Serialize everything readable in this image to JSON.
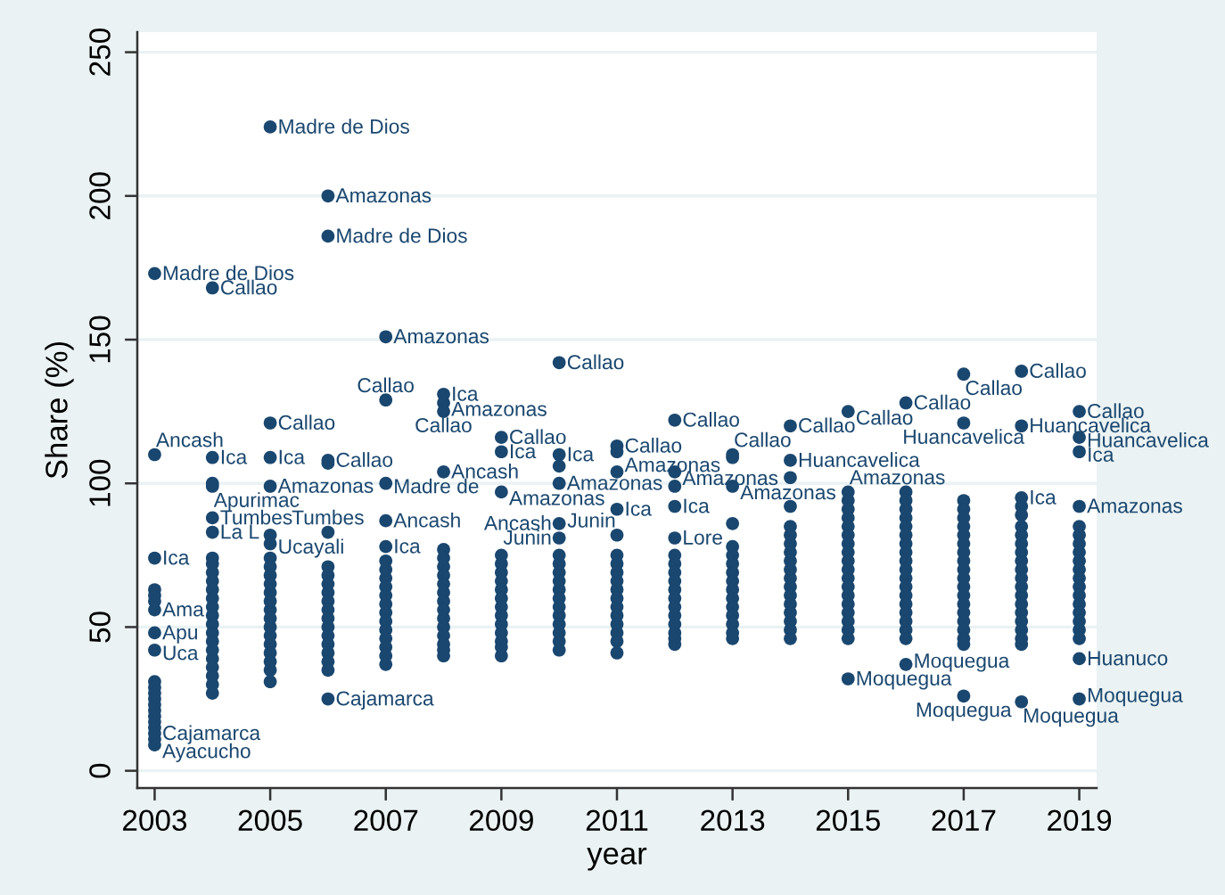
{
  "chart_data": {
    "type": "scatter",
    "xlabel": "year",
    "ylabel": "Share (%)",
    "xlim": [
      2002.7,
      2019.3
    ],
    "ylim": [
      -6,
      257
    ],
    "xticks": [
      2003,
      2005,
      2007,
      2009,
      2011,
      2013,
      2015,
      2017,
      2019
    ],
    "yticks": [
      0,
      50,
      100,
      150,
      200,
      250
    ],
    "grid": "y",
    "marker": "circle",
    "series": [
      {
        "color": "#1a476f",
        "x": [
          2003,
          2003,
          2003,
          2003,
          2003,
          2003,
          2003,
          2003,
          2003,
          2003,
          2003,
          2003,
          2003,
          2003,
          2003,
          2003,
          2003,
          2003,
          2003,
          2003,
          2003
        ],
        "values": [
          173,
          110,
          74,
          63,
          61,
          59,
          56,
          48,
          42,
          31,
          29,
          27,
          25,
          23,
          21,
          19,
          17,
          15,
          13,
          11,
          9
        ],
        "value_labels": [
          "Madre de Dios",
          "Ancash",
          "Ica",
          null,
          null,
          null,
          "Ama",
          "Apu",
          "Uca",
          null,
          null,
          null,
          null,
          null,
          null,
          null,
          null,
          null,
          "Cajamarca",
          null,
          "Ayacucho"
        ]
      },
      {
        "color": "#1a476f",
        "x": [
          2004,
          2004,
          2004,
          2004,
          2004,
          2004,
          2004,
          2004,
          2004,
          2004,
          2004,
          2004,
          2004,
          2004,
          2004,
          2004,
          2004,
          2004,
          2004,
          2004,
          2004,
          2004,
          2004
        ],
        "values": [
          168,
          109,
          100,
          99,
          88,
          83,
          74,
          72,
          69,
          66,
          63,
          60,
          57,
          54,
          51,
          48,
          45,
          42,
          39,
          36,
          33,
          30,
          27
        ],
        "value_labels": [
          "Callao",
          "Ica",
          null,
          "Apurimac",
          "Tumbes",
          "La L",
          null,
          null,
          null,
          null,
          null,
          null,
          null,
          null,
          null,
          null,
          null,
          null,
          null,
          null,
          null,
          null,
          null
        ]
      },
      {
        "color": "#1a476f",
        "x": [
          2005,
          2005,
          2005,
          2005,
          2005,
          2005,
          2005,
          2005,
          2005,
          2005,
          2005,
          2005,
          2005,
          2005,
          2005,
          2005,
          2005,
          2005,
          2005,
          2005,
          2005
        ],
        "values": [
          224,
          121,
          109,
          99,
          82,
          79,
          74,
          71,
          68,
          65,
          62,
          59,
          56,
          53,
          50,
          47,
          44,
          41,
          38,
          35,
          31
        ],
        "value_labels": [
          "Madre de Dios",
          "Callao",
          "Ica",
          "Amazonas",
          null,
          "Ucayali",
          null,
          null,
          null,
          null,
          null,
          null,
          null,
          null,
          null,
          null,
          null,
          null,
          null,
          null,
          null
        ]
      },
      {
        "color": "#1a476f",
        "x": [
          2006,
          2006,
          2006,
          2006,
          2006,
          2006,
          2006,
          2006,
          2006,
          2006,
          2006,
          2006,
          2006,
          2006,
          2006,
          2006,
          2006,
          2006,
          2006
        ],
        "values": [
          200,
          186,
          108,
          107,
          83,
          71,
          68,
          65,
          62,
          59,
          56,
          53,
          50,
          47,
          44,
          41,
          38,
          35,
          25
        ],
        "value_labels": [
          "Amazonas",
          "Madre de Dios",
          "Callao",
          null,
          "Tumbes",
          null,
          null,
          null,
          null,
          null,
          null,
          null,
          null,
          null,
          null,
          null,
          null,
          null,
          "Cajamarca"
        ]
      },
      {
        "color": "#1a476f",
        "x": [
          2007,
          2007,
          2007,
          2007,
          2007,
          2007,
          2007,
          2007,
          2007,
          2007,
          2007,
          2007,
          2007,
          2007,
          2007,
          2007,
          2007,
          2007
        ],
        "values": [
          151,
          129,
          100,
          87,
          78,
          73,
          70,
          67,
          64,
          61,
          58,
          55,
          52,
          49,
          46,
          43,
          40,
          37
        ],
        "value_labels": [
          "Amazonas",
          "Callao",
          "Madre de",
          "Ancash",
          "Ica",
          null,
          null,
          null,
          null,
          null,
          null,
          null,
          null,
          null,
          null,
          null,
          null,
          null
        ]
      },
      {
        "color": "#1a476f",
        "x": [
          2008,
          2008,
          2008,
          2008,
          2008,
          2008,
          2008,
          2008,
          2008,
          2008,
          2008,
          2008,
          2008,
          2008,
          2008,
          2008,
          2008,
          2008
        ],
        "values": [
          131,
          128,
          125,
          104,
          77,
          74,
          71,
          68,
          65,
          62,
          59,
          56,
          53,
          50,
          47,
          44,
          42,
          40
        ],
        "value_labels": [
          "Ica",
          "Amazonas",
          "Callao",
          "Ancash",
          null,
          null,
          null,
          null,
          null,
          null,
          null,
          null,
          null,
          null,
          null,
          null,
          null,
          null
        ]
      },
      {
        "color": "#1a476f",
        "x": [
          2009,
          2009,
          2009,
          2009,
          2009,
          2009,
          2009,
          2009,
          2009,
          2009,
          2009,
          2009,
          2009,
          2009,
          2009,
          2009
        ],
        "values": [
          116,
          111,
          97,
          75,
          72,
          69,
          66,
          63,
          60,
          57,
          54,
          51,
          48,
          45,
          43,
          40
        ],
        "value_labels": [
          "Callao",
          "Ica",
          "Amazonas",
          null,
          null,
          null,
          null,
          null,
          null,
          null,
          null,
          null,
          null,
          null,
          null,
          null
        ]
      },
      {
        "color": "#1a476f",
        "x": [
          2010,
          2010,
          2010,
          2010,
          2010,
          2010,
          2010,
          2010,
          2010,
          2010,
          2010,
          2010,
          2010,
          2010,
          2010,
          2010,
          2010,
          2010
        ],
        "values": [
          142,
          110,
          106,
          100,
          86,
          81,
          75,
          72,
          69,
          66,
          63,
          60,
          57,
          54,
          51,
          48,
          45,
          42
        ],
        "value_labels": [
          "Callao",
          "Ica",
          null,
          "Amazonas",
          "Ancash",
          "Junin",
          null,
          null,
          null,
          null,
          null,
          null,
          null,
          null,
          null,
          null,
          null,
          null
        ]
      },
      {
        "color": "#1a476f",
        "x": [
          2011,
          2011,
          2011,
          2011,
          2011,
          2011,
          2011,
          2011,
          2011,
          2011,
          2011,
          2011,
          2011,
          2011,
          2011,
          2011,
          2011
        ],
        "values": [
          113,
          111,
          104,
          91,
          82,
          75,
          72,
          69,
          66,
          63,
          60,
          57,
          54,
          51,
          48,
          45,
          41
        ],
        "value_labels": [
          "Callao",
          null,
          "Amazonas",
          "Ica",
          "Junin",
          null,
          null,
          null,
          null,
          null,
          null,
          null,
          null,
          null,
          null,
          null,
          null
        ]
      },
      {
        "color": "#1a476f",
        "x": [
          2012,
          2012,
          2012,
          2012,
          2012,
          2012,
          2012,
          2012,
          2012,
          2012,
          2012,
          2012,
          2012,
          2012,
          2012,
          2012,
          2012
        ],
        "values": [
          122,
          104,
          99,
          92,
          81,
          75,
          72,
          69,
          66,
          63,
          60,
          57,
          54,
          51,
          48,
          46,
          44
        ],
        "value_labels": [
          "Callao",
          "Amazonas",
          null,
          "Ica",
          "Lore",
          null,
          null,
          null,
          null,
          null,
          null,
          null,
          null,
          null,
          null,
          null,
          null
        ]
      },
      {
        "color": "#1a476f",
        "x": [
          2013,
          2013,
          2013,
          2013,
          2013,
          2013,
          2013,
          2013,
          2013,
          2013,
          2013,
          2013,
          2013,
          2013,
          2013,
          2013
        ],
        "values": [
          110,
          109,
          99,
          86,
          78,
          75,
          72,
          69,
          66,
          63,
          60,
          57,
          54,
          51,
          48,
          46
        ],
        "value_labels": [
          "Callao",
          null,
          "Amazonas",
          null,
          null,
          null,
          null,
          null,
          null,
          null,
          null,
          null,
          null,
          null,
          null,
          null
        ]
      },
      {
        "color": "#1a476f",
        "x": [
          2014,
          2014,
          2014,
          2014,
          2014,
          2014,
          2014,
          2014,
          2014,
          2014,
          2014,
          2014,
          2014,
          2014,
          2014,
          2014,
          2014,
          2014
        ],
        "values": [
          120,
          108,
          102,
          92,
          85,
          82,
          79,
          76,
          73,
          70,
          67,
          64,
          61,
          58,
          55,
          52,
          49,
          46
        ],
        "value_labels": [
          "Callao",
          "Huancavelica",
          null,
          null,
          null,
          null,
          null,
          null,
          null,
          null,
          null,
          null,
          null,
          null,
          null,
          null,
          null,
          null
        ]
      },
      {
        "color": "#1a476f",
        "x": [
          2015,
          2015,
          2015,
          2015,
          2015,
          2015,
          2015,
          2015,
          2015,
          2015,
          2015,
          2015,
          2015,
          2015,
          2015,
          2015,
          2015,
          2015,
          2015,
          2015
        ],
        "values": [
          125,
          97,
          94,
          91,
          88,
          85,
          82,
          79,
          76,
          73,
          70,
          67,
          64,
          61,
          58,
          55,
          52,
          49,
          46,
          32
        ],
        "value_labels": [
          "Callao",
          "Amazonas",
          null,
          null,
          null,
          null,
          null,
          null,
          null,
          null,
          null,
          null,
          null,
          null,
          null,
          null,
          null,
          null,
          null,
          "Moquegua"
        ]
      },
      {
        "color": "#1a476f",
        "x": [
          2016,
          2016,
          2016,
          2016,
          2016,
          2016,
          2016,
          2016,
          2016,
          2016,
          2016,
          2016,
          2016,
          2016,
          2016,
          2016,
          2016,
          2016,
          2016,
          2016
        ],
        "values": [
          128,
          97,
          94,
          91,
          88,
          85,
          82,
          79,
          76,
          73,
          70,
          67,
          64,
          61,
          58,
          55,
          52,
          49,
          46,
          37
        ],
        "value_labels": [
          "Callao",
          null,
          null,
          null,
          null,
          null,
          null,
          null,
          null,
          null,
          null,
          null,
          null,
          null,
          null,
          null,
          null,
          null,
          null,
          "Moquegua"
        ]
      },
      {
        "color": "#1a476f",
        "x": [
          2017,
          2017,
          2017,
          2017,
          2017,
          2017,
          2017,
          2017,
          2017,
          2017,
          2017,
          2017,
          2017,
          2017,
          2017,
          2017,
          2017,
          2017,
          2017,
          2017,
          2017
        ],
        "values": [
          138,
          121,
          94,
          91,
          88,
          85,
          82,
          79,
          76,
          73,
          70,
          67,
          64,
          61,
          58,
          55,
          52,
          49,
          46,
          44,
          26
        ],
        "value_labels": [
          "Callao",
          "Huancavelica",
          null,
          null,
          null,
          null,
          null,
          null,
          null,
          null,
          null,
          null,
          null,
          null,
          null,
          null,
          null,
          null,
          null,
          null,
          "Moquegua"
        ]
      },
      {
        "color": "#1a476f",
        "x": [
          2018,
          2018,
          2018,
          2018,
          2018,
          2018,
          2018,
          2018,
          2018,
          2018,
          2018,
          2018,
          2018,
          2018,
          2018,
          2018,
          2018,
          2018,
          2018,
          2018,
          2018
        ],
        "values": [
          139,
          120,
          95,
          92,
          89,
          85,
          82,
          79,
          76,
          73,
          70,
          67,
          64,
          61,
          58,
          55,
          52,
          49,
          46,
          44,
          24
        ],
        "value_labels": [
          "Callao",
          "Huancavelica",
          "Ica",
          null,
          null,
          null,
          null,
          null,
          null,
          null,
          null,
          null,
          null,
          null,
          null,
          null,
          null,
          null,
          null,
          null,
          "Moquegua"
        ]
      },
      {
        "color": "#1a476f",
        "x": [
          2019,
          2019,
          2019,
          2019,
          2019,
          2019,
          2019,
          2019,
          2019,
          2019,
          2019,
          2019,
          2019,
          2019,
          2019,
          2019,
          2019,
          2019,
          2019,
          2019
        ],
        "values": [
          125,
          116,
          111,
          92,
          85,
          82,
          79,
          76,
          73,
          70,
          67,
          64,
          61,
          58,
          55,
          52,
          49,
          46,
          39,
          25
        ],
        "value_labels": [
          "Callao",
          "Huancavelica",
          "Ica",
          "Amazonas",
          null,
          null,
          null,
          null,
          null,
          null,
          null,
          null,
          null,
          null,
          null,
          null,
          null,
          null,
          "Huanuco",
          "Moquegua"
        ]
      }
    ]
  }
}
